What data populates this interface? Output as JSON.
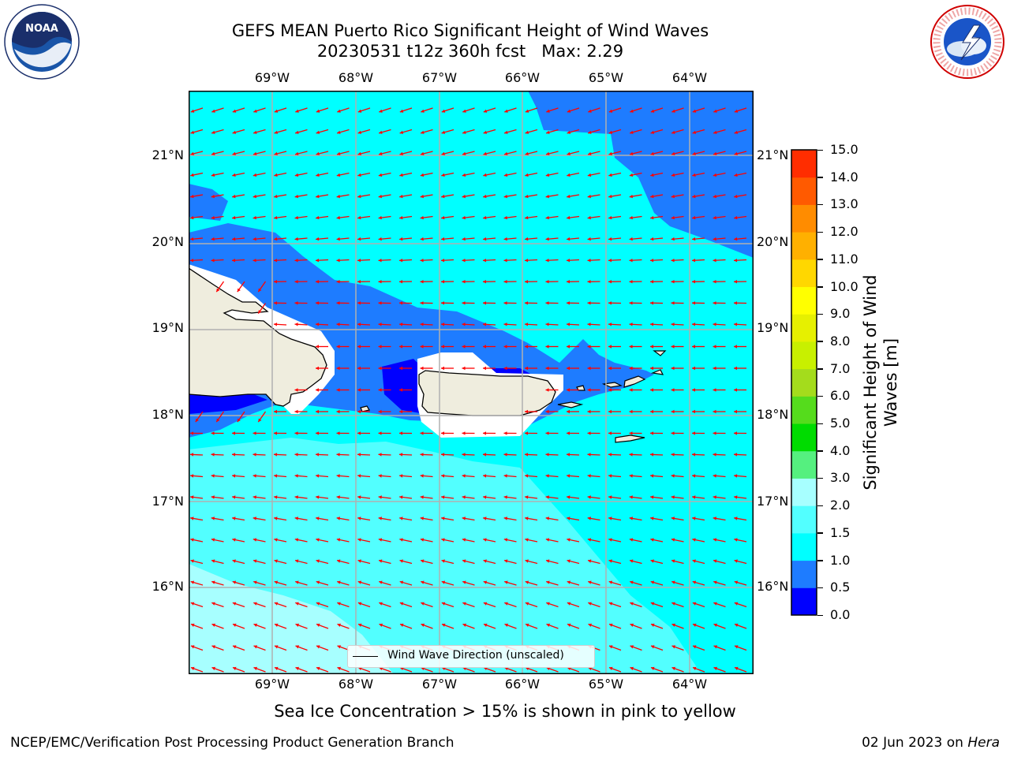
{
  "title": {
    "line1": "GEFS MEAN Puerto Rico Significant Height of Wind Waves",
    "line2": "20230531 t12z 360h fcst   Max: 2.29"
  },
  "map": {
    "lon_labels": [
      "69°W",
      "68°W",
      "67°W",
      "66°W",
      "65°W",
      "64°W"
    ],
    "lat_labels": [
      "21°N",
      "20°N",
      "19°N",
      "18°N",
      "17°N",
      "16°N"
    ],
    "legend_label": "Wind Wave Direction (unscaled)"
  },
  "colorbar": {
    "title": "Significant Height of Wind Waves [m]",
    "ticks": [
      "0.0",
      "0.5",
      "1.0",
      "1.5",
      "2.0",
      "3.0",
      "4.0",
      "5.0",
      "6.0",
      "7.0",
      "8.0",
      "9.0",
      "10.0",
      "11.0",
      "12.0",
      "13.0",
      "14.0",
      "15.0"
    ],
    "colors": [
      "#0000ff",
      "#1e7cff",
      "#00ffff",
      "#52ffff",
      "#a7ffff",
      "#55f07f",
      "#00dc00",
      "#55dc1c",
      "#a4dc1c",
      "#c8f000",
      "#e6f000",
      "#ffff00",
      "#ffd700",
      "#ffb000",
      "#ff8c00",
      "#ff5a00",
      "#ff2d00",
      "#ff0000"
    ]
  },
  "colors": {
    "land": "#efedde",
    "ice_gap": "#ffffff",
    "arrow": "#ff0000",
    "grid": "#b0b0b0"
  },
  "subtitle": "Sea Ice Concentration > 15% is shown in pink to yellow",
  "footer": {
    "left": "NCEP/EMC/Verification Post Processing Product Generation Branch",
    "date": "02 Jun 2023 on ",
    "machine": "Hera"
  },
  "logos": {
    "left": "NOAA",
    "right": "NATIONAL WEATHER SERVICE"
  }
}
